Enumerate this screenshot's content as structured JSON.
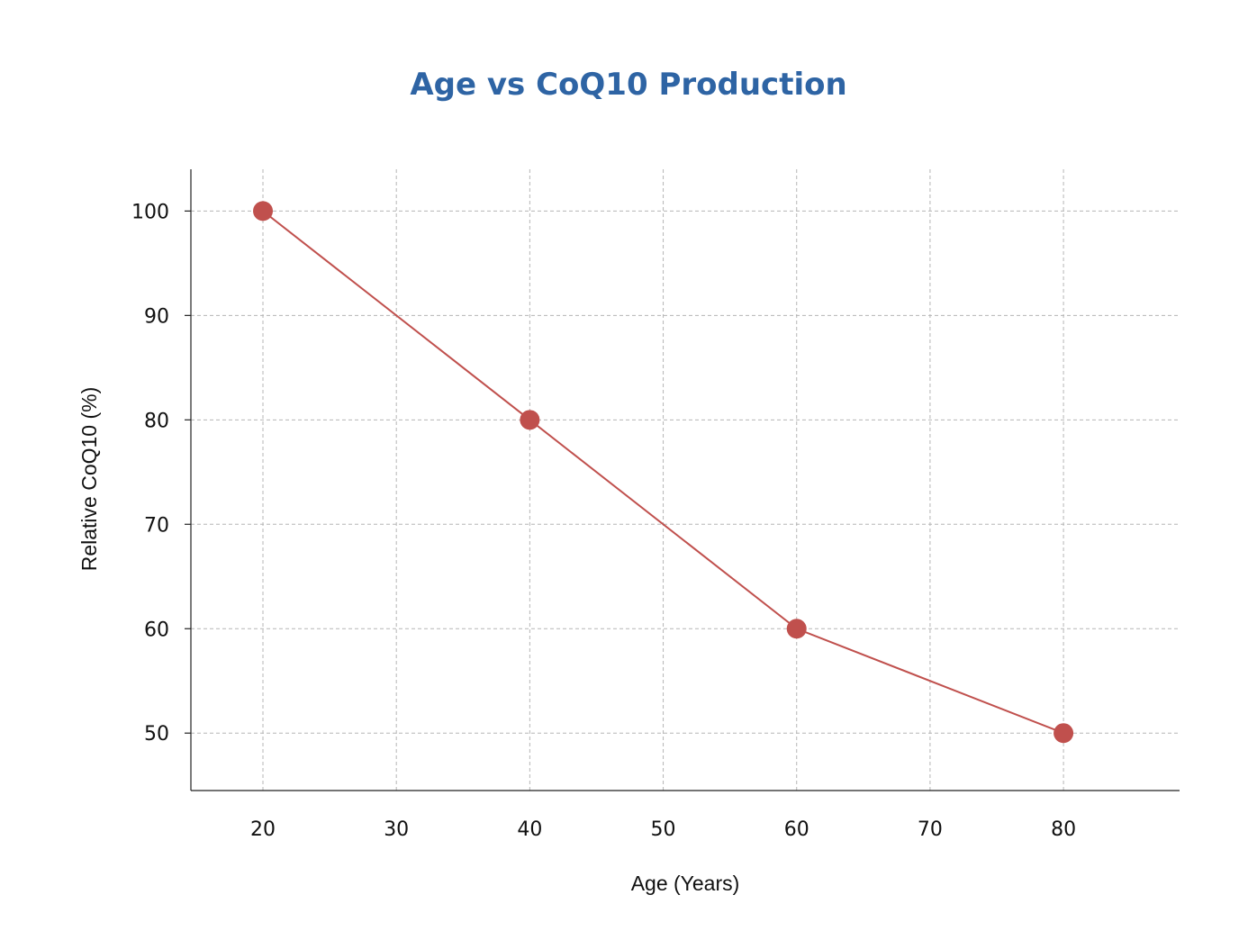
{
  "chart_data": {
    "type": "line",
    "title": "Age vs CoQ10 Production",
    "xlabel": "Age (Years)",
    "ylabel": "Relative CoQ10 (%)",
    "x_ticks": [
      20,
      30,
      40,
      50,
      60,
      70,
      80
    ],
    "y_ticks": [
      50,
      60,
      70,
      80,
      90,
      100
    ],
    "xlim": [
      14.6,
      88.7
    ],
    "ylim": [
      44.5,
      104
    ],
    "grid": true,
    "series": [
      {
        "x": [
          20,
          40,
          60,
          80
        ],
        "y": [
          100,
          80,
          60,
          50
        ],
        "color": "#c0504d"
      }
    ]
  }
}
